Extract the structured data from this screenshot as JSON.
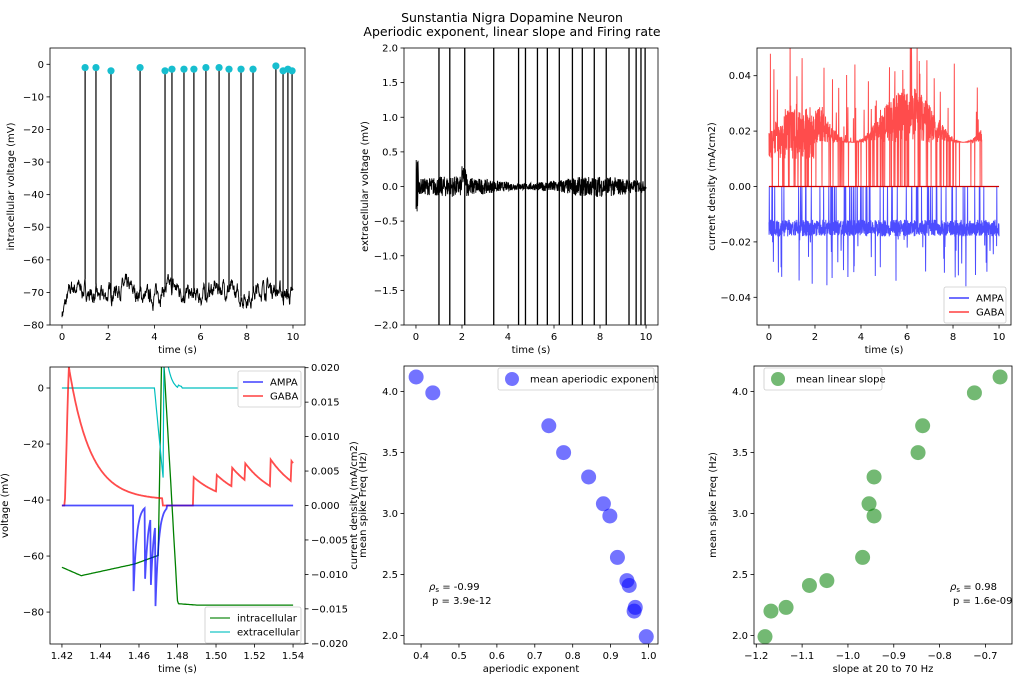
{
  "title_line1": "Sunstantia Nigra Dopamine Neuron",
  "title_line2": "Aperiodic exponent, linear slope and Firing rate",
  "chart_data": [
    {
      "type": "line",
      "xlabel": "time (s)",
      "ylabel": "intracellular voltage (mV)",
      "xlim": [
        -0.52,
        10.52
      ],
      "ylim": [
        -80,
        5
      ],
      "xticks": [
        0,
        2,
        4,
        6,
        8,
        10
      ],
      "xtick_labels": [
        "0",
        "2",
        "4",
        "6",
        "8",
        "10"
      ],
      "yticks": [
        -80,
        -70,
        -60,
        -50,
        -40,
        -30,
        -20,
        -10,
        0
      ],
      "ytick_labels": [
        "−80",
        "−70",
        "−60",
        "−50",
        "−40",
        "−30",
        "−20",
        "−10",
        "0"
      ],
      "baseline_mV": -70,
      "spike_times": [
        1.0,
        1.47,
        2.12,
        3.38,
        4.46,
        4.76,
        5.28,
        5.71,
        6.23,
        6.8,
        7.23,
        7.75,
        8.27,
        9.26,
        9.57,
        9.78,
        9.96
      ],
      "spike_peaks": [
        -1,
        -1,
        -2,
        -1,
        -2,
        -1.5,
        -1.5,
        -1.5,
        -1,
        -1,
        -1.5,
        -1.5,
        -1.5,
        -0.5,
        -2,
        -1.5,
        -2
      ],
      "line_color": "#000000",
      "marker_color": "#17becf"
    },
    {
      "type": "line",
      "xlabel": "time (s)",
      "ylabel": "extracellular voltage (mV)",
      "xlim": [
        -0.52,
        10.52
      ],
      "ylim": [
        -2,
        2
      ],
      "xticks": [
        0,
        2,
        4,
        6,
        8,
        10
      ],
      "xtick_labels": [
        "0",
        "2",
        "4",
        "6",
        "8",
        "10"
      ],
      "yticks": [
        -2,
        -1.5,
        -1,
        -0.5,
        0,
        0.5,
        1,
        1.5,
        2
      ],
      "ytick_labels": [
        "−2.0",
        "−1.5",
        "−1.0",
        "−0.5",
        "0.0",
        "0.5",
        "1.0",
        "1.5",
        "2.0"
      ],
      "line_color": "#000000"
    },
    {
      "type": "line",
      "xlabel": "time (s)",
      "ylabel": "current density (mA/cm2)",
      "xlim": [
        -0.52,
        10.52
      ],
      "ylim": [
        -0.05,
        0.05
      ],
      "xticks": [
        0,
        2,
        4,
        6,
        8,
        10
      ],
      "xtick_labels": [
        "0",
        "2",
        "4",
        "6",
        "8",
        "10"
      ],
      "yticks": [
        -0.04,
        -0.02,
        0,
        0.02,
        0.04
      ],
      "ytick_labels": [
        "−0.04",
        "−0.02",
        "0.00",
        "0.02",
        "0.04"
      ],
      "legend_position": "lower-right",
      "series": [
        {
          "name": "AMPA",
          "color": "#0000ff"
        },
        {
          "name": "GABA",
          "color": "#ff0000"
        }
      ]
    },
    {
      "type": "line",
      "xlabel": "time (s)",
      "ylabel": "voltage (mV)",
      "ylabel_right": "current density (mA/cm2)",
      "xlim": [
        1.4138,
        1.5462
      ],
      "ylim": [
        -91.4,
        7.5
      ],
      "ylim_right": [
        -0.0201,
        0.0201
      ],
      "xticks": [
        1.42,
        1.44,
        1.46,
        1.48,
        1.5,
        1.52,
        1.54
      ],
      "xtick_labels": [
        "1.42",
        "1.44",
        "1.46",
        "1.48",
        "1.50",
        "1.52",
        "1.54"
      ],
      "yticks": [
        -80,
        -60,
        -40,
        -20,
        0
      ],
      "ytick_labels": [
        "−80",
        "−60",
        "−40",
        "−20",
        "0"
      ],
      "yticks_right": [
        -0.02,
        -0.015,
        -0.01,
        -0.005,
        0,
        0.005,
        0.01,
        0.015,
        0.02
      ],
      "ytick_labels_right": [
        "−0.020",
        "−0.015",
        "−0.010",
        "−0.005",
        "0.000",
        "0.005",
        "0.010",
        "0.015",
        "0.020"
      ],
      "legend_top_right": [
        {
          "name": "AMPA",
          "color": "#0000ff"
        },
        {
          "name": "GABA",
          "color": "#ff0000"
        }
      ],
      "legend_bottom_right": [
        {
          "name": "intracellular",
          "color": "#008000"
        },
        {
          "name": "extracellular",
          "color": "#00bfbf"
        }
      ]
    },
    {
      "type": "scatter",
      "xlabel": "aperiodic exponent",
      "ylabel": "mean spike Freq (Hz)",
      "xlim": [
        0.355,
        1.025
      ],
      "ylim": [
        1.93,
        4.21
      ],
      "xticks": [
        0.4,
        0.5,
        0.6,
        0.7,
        0.8,
        0.9,
        1.0
      ],
      "xtick_labels": [
        "0.4",
        "0.5",
        "0.6",
        "0.7",
        "0.8",
        "0.9",
        "1.0"
      ],
      "yticks": [
        2.0,
        2.5,
        3.0,
        3.5,
        4.0
      ],
      "ytick_labels": [
        "2.0",
        "2.5",
        "3.0",
        "3.5",
        "4.0"
      ],
      "legend": "mean aperiodic exponent",
      "legend_position": "upper-right",
      "color": "#0000ff",
      "x": [
        0.387,
        0.431,
        0.737,
        0.776,
        0.842,
        0.881,
        0.898,
        0.918,
        0.943,
        0.949,
        0.965,
        0.962,
        0.994
      ],
      "y": [
        4.12,
        3.99,
        3.72,
        3.5,
        3.3,
        3.08,
        2.98,
        2.64,
        2.45,
        2.41,
        2.23,
        2.2,
        1.99
      ],
      "rho_symbol": "ρ",
      "rho_sub": "s",
      "rho_text": " = -0.99",
      "p_text": "p = 3.9e-12"
    },
    {
      "type": "scatter",
      "xlabel": "slope at 20 to 70 Hz",
      "ylabel": "mean spike Freq (Hz)",
      "xlim": [
        -1.205,
        -0.642
      ],
      "ylim": [
        1.93,
        4.21
      ],
      "xticks": [
        -1.2,
        -1.1,
        -1.0,
        -0.9,
        -0.8,
        -0.7
      ],
      "xtick_labels": [
        "−1.2",
        "−1.1",
        "−1.0",
        "−0.9",
        "−0.8",
        "−0.7"
      ],
      "yticks": [
        2.0,
        2.5,
        3.0,
        3.5,
        4.0
      ],
      "ytick_labels": [
        "2.0",
        "2.5",
        "3.0",
        "3.5",
        "4.0"
      ],
      "legend": "mean linear slope",
      "legend_position": "upper-left",
      "color": "#008000",
      "x": [
        -0.668,
        -0.724,
        -0.837,
        -0.847,
        -0.943,
        -0.954,
        -0.943,
        -0.968,
        -1.046,
        -1.084,
        -1.135,
        -1.168,
        -1.181
      ],
      "y": [
        4.12,
        3.99,
        3.72,
        3.5,
        3.3,
        3.08,
        2.98,
        2.64,
        2.45,
        2.41,
        2.23,
        2.2,
        1.99
      ],
      "rho_symbol": "ρ",
      "rho_sub": "s",
      "rho_text": " = 0.98",
      "p_text": "p = 1.6e-09"
    }
  ]
}
